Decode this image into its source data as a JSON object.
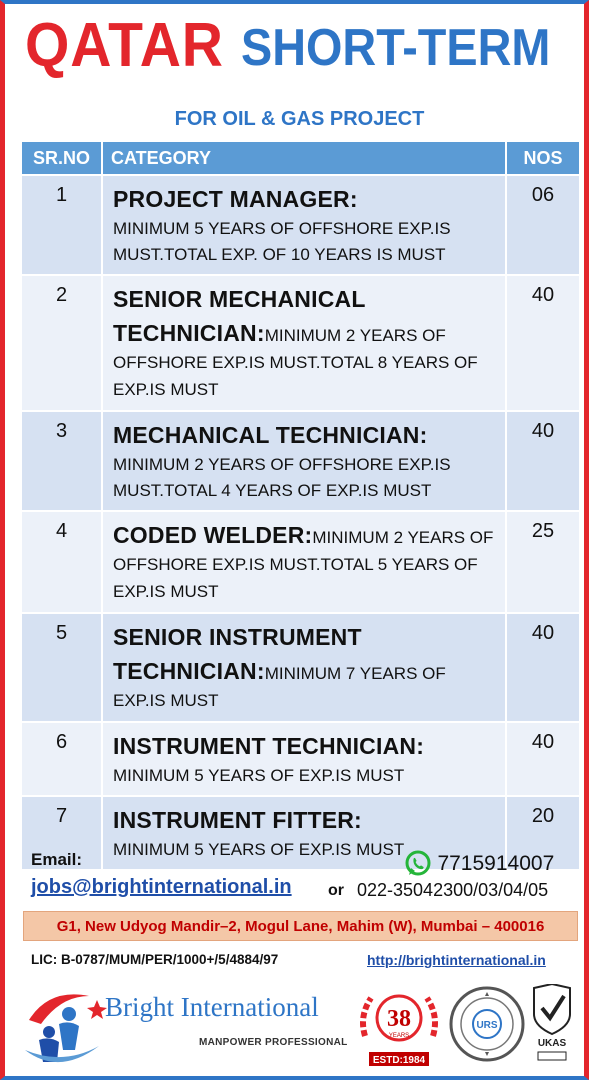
{
  "header": {
    "title_red": "QATAR",
    "title_blue": "SHORT-TERM",
    "subtitle": "FOR OIL & GAS PROJECT"
  },
  "table": {
    "headers": {
      "sr": "SR.NO",
      "category": "CATEGORY",
      "nos": "NOS"
    },
    "rows": [
      {
        "sr": "1",
        "title": "PROJECT MANAGER:",
        "title_break": true,
        "desc": "MINIMUM 5 YEARS OF OFFSHORE EXP.IS MUST.TOTAL EXP. OF 10 YEARS IS MUST",
        "nos": "06"
      },
      {
        "sr": "2",
        "title": "SENIOR MECHANICAL TECHNICIAN:",
        "title_break": false,
        "desc": "MINIMUM 2 YEARS OF OFFSHORE EXP.IS MUST.TOTAL 8 YEARS OF EXP.IS MUST",
        "nos": "40"
      },
      {
        "sr": "3",
        "title": "MECHANICAL TECHNICIAN:",
        "title_break": true,
        "desc": "MINIMUM 2 YEARS OF OFFSHORE EXP.IS MUST.TOTAL 4 YEARS OF EXP.IS MUST",
        "nos": "40"
      },
      {
        "sr": "4",
        "title": "CODED WELDER:",
        "title_break": false,
        "desc": "MINIMUM 2 YEARS OF OFFSHORE EXP.IS MUST.TOTAL 5 YEARS OF EXP.IS MUST",
        "nos": "25"
      },
      {
        "sr": "5",
        "title": "SENIOR INSTRUMENT TECHNICIAN:",
        "title_break": false,
        "desc": "MINIMUM 7 YEARS OF EXP.IS MUST",
        "nos": "40"
      },
      {
        "sr": "6",
        "title": "INSTRUMENT TECHNICIAN:",
        "title_break": true,
        "desc": "MINIMUM 5 YEARS OF EXP.IS MUST",
        "nos": "40"
      },
      {
        "sr": "7",
        "title": "INSTRUMENT FITTER:",
        "title_break": true,
        "desc": "MINIMUM 5 YEARS OF EXP.IS MUST",
        "nos": "20"
      }
    ]
  },
  "contact": {
    "email_label": "Email:",
    "email": "jobs@brightinternational.in",
    "or": "or",
    "phone_mobile": "7715914007",
    "phone_landline": "022-35042300/03/04/05",
    "address": "G1, New Udyog Mandir–2, Mogul Lane, Mahim (W), Mumbai – 400016",
    "license": "LIC: B-0787/MUM/PER/1000+/5/4884/97",
    "website": "http://brightinternational.in"
  },
  "footer": {
    "brand_name": "Bright International",
    "brand_tagline": "MANPOWER PROFESSIONAL",
    "anniversary_number": "38",
    "anniversary_word": "YEARS",
    "established": "ESTD:1984",
    "cert_mark": "URS",
    "ukas_text": "UKAS",
    "icons": [
      "whatsapp-icon",
      "brand-logo-icon",
      "anniversary-badge-icon",
      "certification-seal-icon",
      "ukas-checkmark-icon"
    ],
    "colors": {
      "red": "#e3262c",
      "blue": "#2e75c6",
      "address_bg": "#f4c7a7"
    }
  }
}
